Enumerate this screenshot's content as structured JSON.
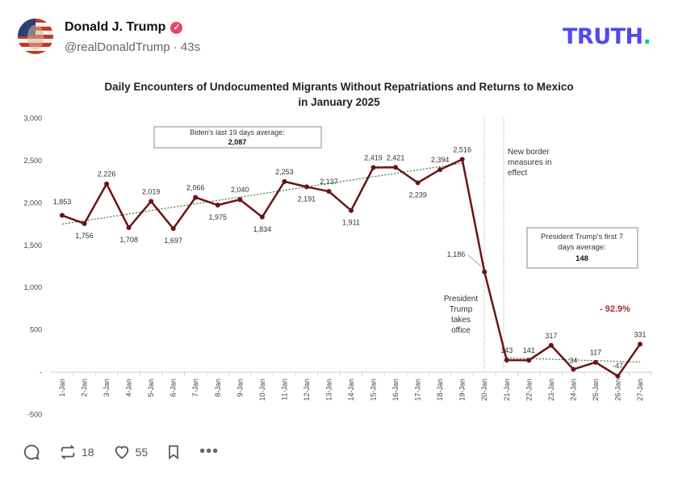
{
  "post": {
    "author": "Donald J. Trump",
    "verified_icon": "verified-check-icon",
    "handle_time": "@realDonaldTrump · 43s",
    "brand_logo": "TRUTH.",
    "brand_color": "#5448ee",
    "brand_dot_color": "#17c3a1"
  },
  "actions": {
    "reposts": "18",
    "likes": "55"
  },
  "chart_data": {
    "type": "line",
    "title_line1": "Daily Encounters of Undocumented Migrants Without Repatriations and Returns to Mexico",
    "title_line2": "in January 2025",
    "categories": [
      "1-Jan",
      "2-Jan",
      "3-Jan",
      "4-Jan",
      "5-Jan",
      "6-Jan",
      "7-Jan",
      "8-Jan",
      "9-Jan",
      "10-Jan",
      "11-Jan",
      "12-Jan",
      "13-Jan",
      "14-Jan",
      "15-Jan",
      "16-Jan",
      "17-Jan",
      "18-Jan",
      "19-Jan",
      "20-Jan",
      "21-Jan",
      "22-Jan",
      "23-Jan",
      "24-Jan",
      "25-Jan",
      "26-Jan",
      "27-Jan"
    ],
    "values": [
      1853,
      1756,
      2226,
      1708,
      2019,
      1697,
      2066,
      1975,
      2040,
      1834,
      2253,
      2191,
      2137,
      1911,
      2419,
      2421,
      2239,
      2394,
      2516,
      1186,
      143,
      141,
      317,
      34,
      117,
      -47,
      331
    ],
    "data_labels": [
      "1,853",
      "1,756",
      "2,226",
      "1,708",
      "2,019",
      "1,697",
      "2,066",
      "1,975",
      "2,040",
      "1,834",
      "2,253",
      "2,191",
      "2,137",
      "1,911",
      "2,419",
      "2,421",
      "2,239",
      "2,394",
      "2,516",
      "1,186",
      "143",
      "141",
      "317",
      "34",
      "117",
      "-47",
      "331"
    ],
    "ylim": [
      -500,
      3000
    ],
    "yticks": [
      "-500",
      "-",
      "500",
      "1,000",
      "1,500",
      "2,000",
      "2,500",
      "3,000"
    ],
    "ytick_values": [
      -500,
      0,
      500,
      1000,
      1500,
      2000,
      2500,
      3000
    ],
    "line_color": "#6b1414",
    "trend_color": "#2e7d32",
    "trendlines": [
      {
        "from": "1-Jan",
        "to": "19-Jan",
        "start": 1750,
        "end": 2470
      },
      {
        "from": "21-Jan",
        "to": "27-Jan",
        "start": 170,
        "end": 120
      }
    ],
    "annotations": {
      "biden_box_line1": "Biden's last 19 days average:",
      "biden_box_value": "2,087",
      "trump_box_line1": "President Trump's first 7",
      "trump_box_line2": "days average:",
      "trump_box_value": "148",
      "border_note": [
        "New border",
        "measures in",
        "effect"
      ],
      "takes_office": [
        "President",
        "Trump",
        "takes",
        "office"
      ],
      "change": "- 92.9%",
      "change_color": "#a0322a"
    },
    "grid": false
  }
}
